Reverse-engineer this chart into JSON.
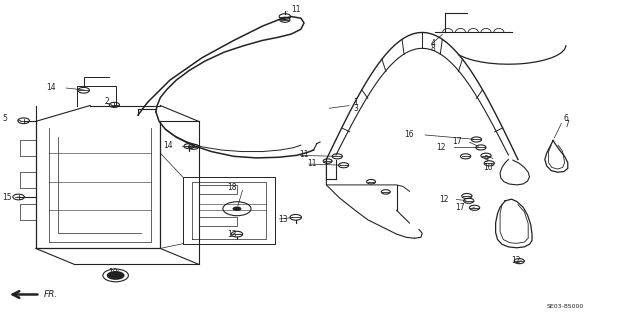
{
  "bg_color": "#ffffff",
  "fig_width": 6.4,
  "fig_height": 3.19,
  "dpi": 100,
  "diagram_code": "SE03-85000",
  "arrow_label": "FR."
}
